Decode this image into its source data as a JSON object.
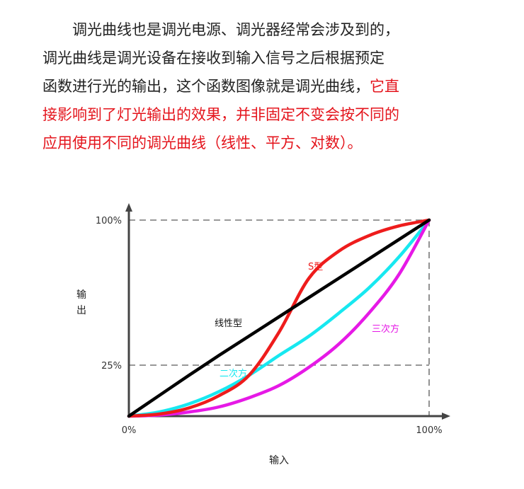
{
  "paragraph": {
    "line1": "　　调光曲线也是调光电源、调光器经常会涉及到的，",
    "line2": "调光曲线是调光设备在接收到输入信号之后根据预定",
    "line3_black": "函数进行光的输出，这个函数图像就是调光曲线，",
    "line3_red": "它直",
    "line4": "接影响到了灯光输出的效果，并非固定不变会按不同的",
    "line5": "应用使用不同的调光曲线（线性、平方、对数）。",
    "highlight_color": "#e4141c"
  },
  "chart_data": {
    "type": "line",
    "title": "",
    "xlabel": "输入",
    "ylabel": "输出",
    "xlim": [
      0,
      1
    ],
    "ylim": [
      0,
      1
    ],
    "x_ticks": [
      {
        "value": 0,
        "label": "0%"
      },
      {
        "value": 1,
        "label": "100%"
      }
    ],
    "y_ticks": [
      {
        "value": 0.25,
        "label": "25%"
      },
      {
        "value": 1,
        "label": "100%"
      }
    ],
    "guides": [
      {
        "axis": "y",
        "value": 1,
        "style": "dashed"
      },
      {
        "axis": "y",
        "value": 0.25,
        "style": "dashed"
      },
      {
        "axis": "x",
        "value": 1,
        "style": "dashed"
      }
    ],
    "x": [
      0,
      0.1,
      0.2,
      0.3,
      0.4,
      0.5,
      0.6,
      0.7,
      0.8,
      0.9,
      1
    ],
    "series": [
      {
        "name": "线性型",
        "color": "#000000",
        "values": [
          0,
          0.1,
          0.2,
          0.3,
          0.4,
          0.5,
          0.6,
          0.7,
          0.8,
          0.9,
          1
        ]
      },
      {
        "name": "二次方",
        "color": "#17e8f0",
        "values": [
          0,
          0.02,
          0.06,
          0.12,
          0.2,
          0.3,
          0.4,
          0.52,
          0.65,
          0.81,
          1
        ]
      },
      {
        "name": "S型",
        "color": "#ee1c1c",
        "values": [
          0,
          0.01,
          0.04,
          0.1,
          0.2,
          0.42,
          0.7,
          0.84,
          0.92,
          0.97,
          1
        ]
      },
      {
        "name": "三次方",
        "color": "#e619e6",
        "values": [
          0,
          0.005,
          0.02,
          0.045,
          0.09,
          0.15,
          0.24,
          0.36,
          0.52,
          0.72,
          1
        ]
      }
    ],
    "series_labels": [
      "线性型",
      "二次方",
      "S型",
      "三次方"
    ]
  }
}
